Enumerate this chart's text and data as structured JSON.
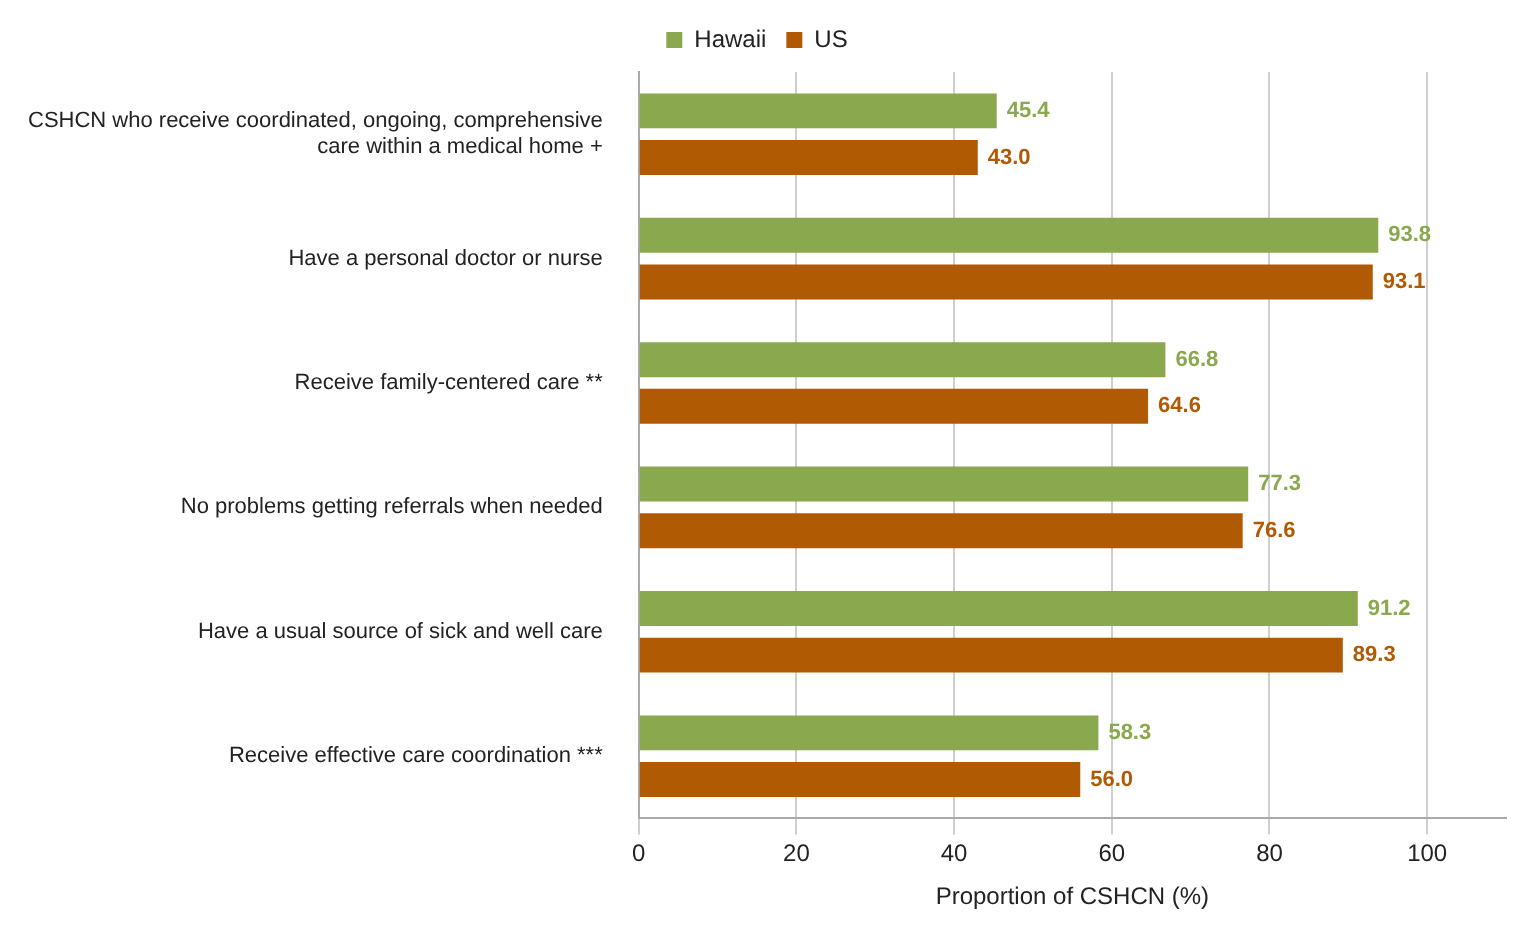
{
  "chart_data": {
    "type": "bar",
    "orientation": "horizontal",
    "xlabel": "Proportion of CSHCN (%)",
    "categories": [
      "CSHCN who receive coordinated, ongoing, comprehensive care within a medical home +",
      "Have a personal doctor or nurse",
      "Receive family-centered care **",
      "No problems getting referrals when needed",
      "Have a usual source of sick and well care",
      "Receive effective care coordination ***"
    ],
    "series": [
      {
        "name": "Hawaii",
        "color": "#8aa84e",
        "values": [
          45.4,
          93.8,
          66.8,
          77.3,
          91.2,
          58.3
        ],
        "value_labels": [
          "45.4",
          "93.8",
          "66.8",
          "77.3",
          "91.2",
          "58.3"
        ]
      },
      {
        "name": "US",
        "color": "#b15a04",
        "values": [
          43.0,
          93.1,
          64.6,
          76.6,
          89.3,
          56.0
        ],
        "value_labels": [
          "43.0",
          "93.1",
          "64.6",
          "76.6",
          "89.3",
          "56.0"
        ]
      }
    ],
    "xlim": [
      0,
      110
    ],
    "xticks": [
      0,
      20,
      40,
      60,
      80,
      100
    ],
    "grid": "x",
    "legend": "top"
  }
}
